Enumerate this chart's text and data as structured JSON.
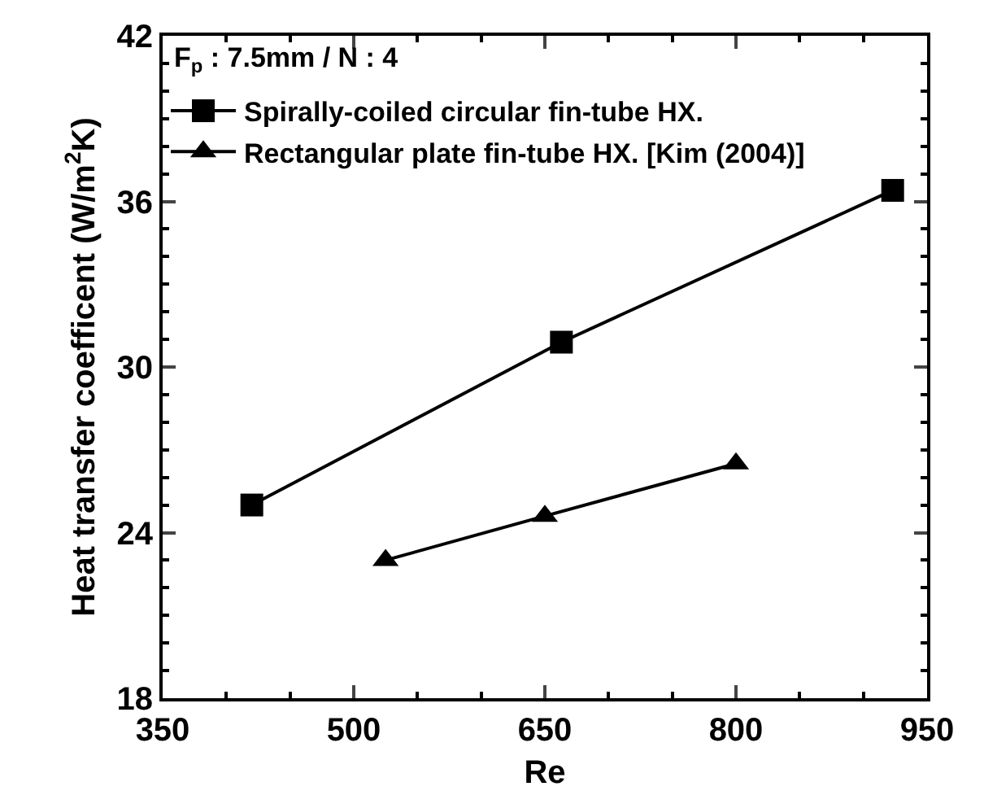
{
  "chart_data": {
    "type": "line",
    "xlabel": "Re",
    "ylabel": "Heat transfer coefficent (W/m$^{2}$K)",
    "annotations": [
      "F$_{p}$ : 7.5mm / N : 4"
    ],
    "xlim": [
      350,
      950
    ],
    "xticks": [
      350,
      500,
      650,
      800,
      950
    ],
    "ylim": [
      18,
      42
    ],
    "yticks": [
      18,
      24,
      30,
      36,
      42
    ],
    "legend": "top left",
    "series": [
      {
        "name": "Spirally-coiled circular fin-tube HX.",
        "color": "#000000",
        "marker": "square",
        "x": [
          420,
          663,
          923
        ],
        "values": [
          25.0,
          30.9,
          36.4
        ]
      },
      {
        "name": "Rectangular plate fin-tube HX. [Kim (2004)]",
        "color": "#000000",
        "marker": "triangle",
        "x": [
          525,
          650,
          800
        ],
        "values": [
          23.0,
          24.6,
          26.5
        ]
      }
    ]
  }
}
